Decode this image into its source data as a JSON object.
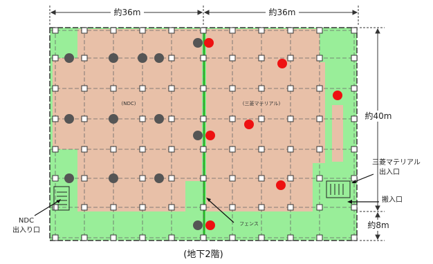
{
  "dimensions": {
    "top_left": "約36m",
    "top_right": "約36m",
    "right_height": "約40m",
    "bottom_right": "約8m"
  },
  "zones": {
    "left": "(NDC)",
    "right": "(三菱マテリアル)"
  },
  "labels": {
    "fence": "フェンス",
    "mitsubishi_entrance_line1": "三菱マテリアル",
    "mitsubishi_entrance_line2": "出入口",
    "loading_entrance": "搬入口",
    "ndc_entrance_line1": "NDC",
    "ndc_entrance_line2": "出入り口"
  },
  "caption": "(地下2階)",
  "colors": {
    "green_area": "#99ee99",
    "occupied_area": "#e8c0a8",
    "fence_line": "#22bb22",
    "ndc_marker": "#555555",
    "mitsubishi_marker": "#ee1111"
  }
}
